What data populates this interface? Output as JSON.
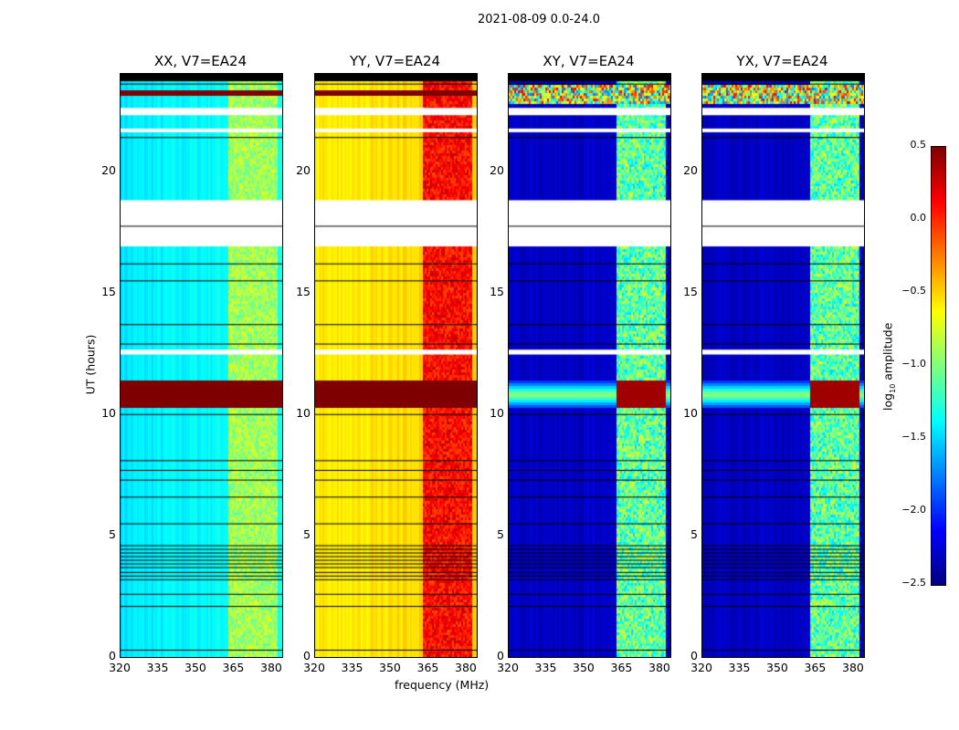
{
  "chart_data": {
    "type": "heatmap",
    "suptitle": "2021-08-09 0.0-24.0",
    "xlabel": "frequency (MHz)",
    "ylabel": "UT (hours)",
    "xlim": [
      320,
      384
    ],
    "ylim": [
      0,
      24
    ],
    "xticks": [
      "320",
      "335",
      "350",
      "365",
      "380"
    ],
    "yticks": [
      "0",
      "5",
      "10",
      "15",
      "20"
    ],
    "colorbar": {
      "label_prefix": "log",
      "label_sub": "10",
      "label_suffix": " amplitude",
      "range": [
        -2.5,
        0.5
      ],
      "ticks": [
        "0.5",
        "0.0",
        "−0.5",
        "−1.0",
        "−1.5",
        "−2.0",
        "−2.5"
      ],
      "colormap": "jet"
    },
    "panels": [
      {
        "title": "XX, V7=EA24",
        "base": -1.3,
        "band": -0.9,
        "rfi": 0.5,
        "cross": false
      },
      {
        "title": "YY, V7=EA24",
        "base": -0.45,
        "band": 0.1,
        "rfi": 0.5,
        "cross": false
      },
      {
        "title": "XY, V7=EA24",
        "base": -2.35,
        "band": -1.1,
        "rfi": -0.9,
        "cross": true
      },
      {
        "title": "YX, V7=EA24",
        "base": -2.35,
        "band": -1.1,
        "rfi": -0.9,
        "cross": true
      }
    ],
    "channel_band_mhz": [
      [
        362,
        366.5
      ],
      [
        367,
        371.5
      ],
      [
        372,
        376.5
      ],
      [
        377,
        381.5
      ]
    ],
    "rfi_hours": [
      10.3,
      11.4
    ],
    "flagged_hours_white": [
      [
        16.9,
        18.8
      ],
      [
        12.45,
        12.65
      ],
      [
        21.6,
        21.75
      ],
      [
        22.3,
        22.6
      ]
    ],
    "flagged_lines_black": [
      0.3,
      2.1,
      2.6,
      3.2,
      3.35,
      3.5,
      3.7,
      3.85,
      4.0,
      4.15,
      4.3,
      4.45,
      4.6,
      5.5,
      6.6,
      7.3,
      7.7,
      8.1,
      10.0,
      12.9,
      13.7,
      15.5,
      16.2,
      17.75,
      21.4,
      23.6
    ],
    "top_black_hours": [
      23.7,
      24
    ]
  }
}
